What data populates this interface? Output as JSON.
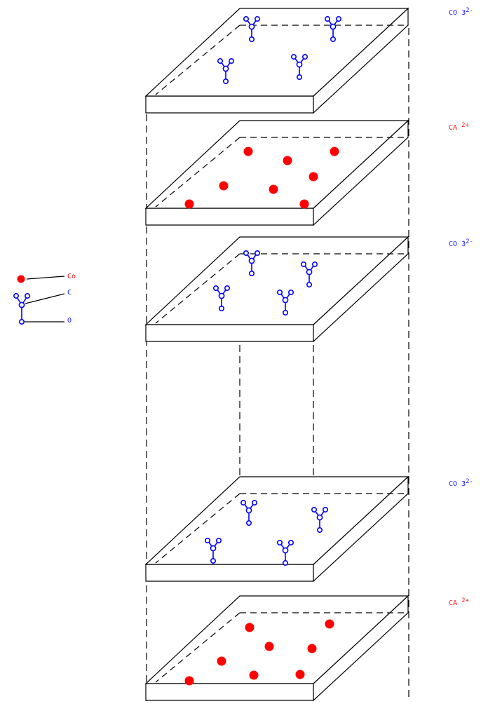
{
  "colors": {
    "calcium": "#ff0000",
    "carbonate": "#0000ff",
    "outline": "#000000"
  },
  "layers": [
    {
      "ion": "carbonate",
      "label": "CO",
      "subscript": "3",
      "charge": "2-"
    },
    {
      "ion": "calcium",
      "label": "CA",
      "subscript": "",
      "charge": "2+"
    },
    {
      "ion": "carbonate",
      "label": "CO",
      "subscript": "3",
      "charge": "2-"
    },
    {
      "ion": "carbonate",
      "label": "CO",
      "subscript": "3",
      "charge": "2-"
    },
    {
      "ion": "calcium",
      "label": "CA",
      "subscript": "",
      "charge": "2+"
    }
  ],
  "legend": {
    "calcium_label": "Co",
    "carbon_label": "C",
    "oxygen_label": "O"
  }
}
